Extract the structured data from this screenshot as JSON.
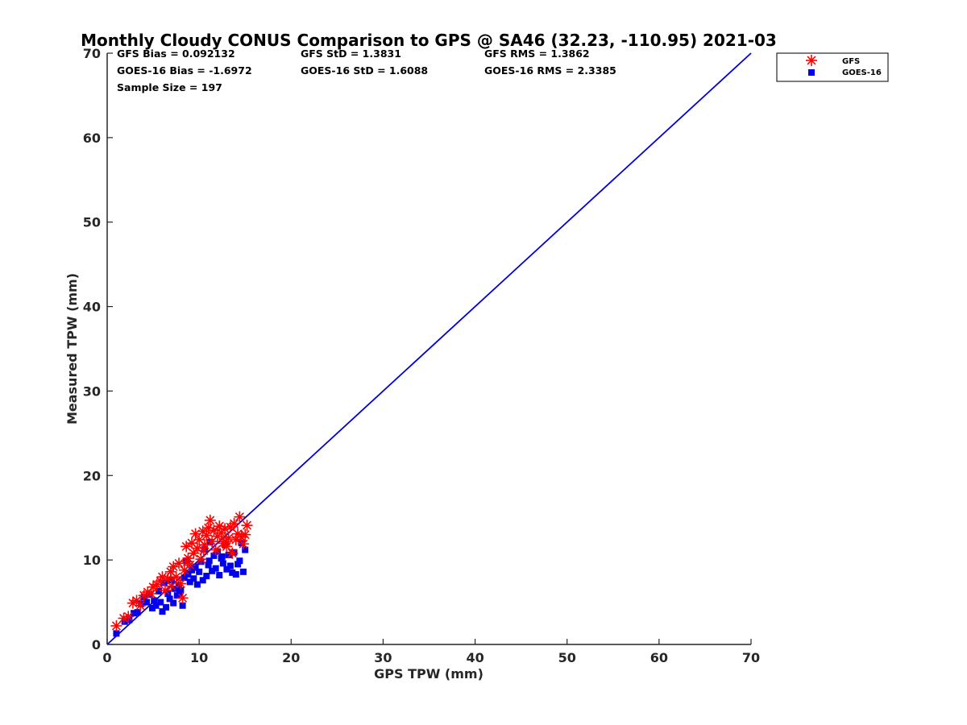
{
  "chart_data": {
    "type": "scatter",
    "title": "Monthly Cloudy CONUS Comparison to GPS @ SA46 (32.23, -110.95) 2021-03",
    "xlabel": "GPS TPW (mm)",
    "ylabel": "Measured TPW (mm)",
    "xlim": [
      0,
      70
    ],
    "ylim": [
      0,
      70
    ],
    "xticks": [
      "0",
      "10",
      "20",
      "30",
      "40",
      "50",
      "60",
      "70"
    ],
    "yticks": [
      "0",
      "10",
      "20",
      "30",
      "40",
      "50",
      "60",
      "70"
    ],
    "grid": false,
    "legend_position": "top-right (outside axes)",
    "stats": [
      [
        "GFS Bias = 0.092132",
        "GFS StD = 1.3831",
        "GFS RMS = 1.3862"
      ],
      [
        "GOES-16 Bias = -1.6972",
        "GOES-16 StD = 1.6088",
        "GOES-16 RMS = 2.3385"
      ],
      [
        "Sample Size = 197"
      ]
    ],
    "reference_line": {
      "x": [
        0,
        70
      ],
      "y": [
        0,
        70
      ],
      "color": "#0000dd"
    },
    "series": [
      {
        "name": "GFS",
        "marker": "asterisk",
        "color": "#ff0000",
        "points": [
          [
            1.0,
            2.2
          ],
          [
            1.8,
            3.1
          ],
          [
            2.3,
            3.3
          ],
          [
            2.8,
            4.9
          ],
          [
            3.2,
            5.2
          ],
          [
            3.6,
            4.6
          ],
          [
            4.0,
            5.8
          ],
          [
            4.4,
            6.2
          ],
          [
            4.8,
            6.0
          ],
          [
            5.0,
            6.8
          ],
          [
            5.4,
            7.1
          ],
          [
            5.8,
            7.5
          ],
          [
            6.0,
            8.0
          ],
          [
            6.3,
            6.4
          ],
          [
            6.6,
            7.8
          ],
          [
            6.9,
            8.6
          ],
          [
            7.2,
            9.2
          ],
          [
            7.5,
            8.0
          ],
          [
            7.8,
            9.6
          ],
          [
            8.0,
            7.2
          ],
          [
            8.2,
            5.5
          ],
          [
            8.4,
            8.8
          ],
          [
            8.6,
            11.6
          ],
          [
            8.8,
            10.2
          ],
          [
            9.0,
            9.4
          ],
          [
            9.2,
            12.0
          ],
          [
            9.4,
            10.8
          ],
          [
            9.6,
            13.1
          ],
          [
            9.8,
            11.4
          ],
          [
            10.0,
            12.4
          ],
          [
            10.2,
            10.1
          ],
          [
            10.4,
            13.4
          ],
          [
            10.6,
            11.8
          ],
          [
            10.8,
            12.9
          ],
          [
            11.0,
            13.8
          ],
          [
            11.2,
            14.7
          ],
          [
            11.4,
            12.2
          ],
          [
            11.6,
            13.5
          ],
          [
            11.8,
            11.2
          ],
          [
            12.0,
            12.8
          ],
          [
            12.2,
            14.0
          ],
          [
            12.4,
            13.2
          ],
          [
            12.6,
            12.0
          ],
          [
            12.8,
            13.7
          ],
          [
            13.0,
            11.6
          ],
          [
            13.2,
            12.6
          ],
          [
            13.4,
            13.9
          ],
          [
            13.6,
            10.8
          ],
          [
            13.8,
            14.3
          ],
          [
            14.0,
            12.4
          ],
          [
            14.2,
            13.1
          ],
          [
            14.4,
            15.1
          ],
          [
            14.6,
            12.7
          ],
          [
            14.8,
            11.9
          ],
          [
            15.0,
            13.0
          ],
          [
            15.2,
            14.1
          ],
          [
            7.0,
            6.9
          ],
          [
            8.7,
            9.8
          ],
          [
            10.5,
            11.1
          ],
          [
            12.9,
            12.2
          ]
        ]
      },
      {
        "name": "GOES-16",
        "marker": "square",
        "color": "#0000ee",
        "points": [
          [
            1.0,
            1.3
          ],
          [
            1.9,
            2.7
          ],
          [
            2.4,
            2.9
          ],
          [
            2.9,
            3.7
          ],
          [
            3.3,
            3.8
          ],
          [
            3.7,
            4.8
          ],
          [
            4.0,
            5.6
          ],
          [
            4.3,
            5.0
          ],
          [
            4.6,
            5.9
          ],
          [
            4.9,
            4.3
          ],
          [
            5.1,
            5.2
          ],
          [
            5.3,
            4.6
          ],
          [
            5.6,
            6.3
          ],
          [
            5.8,
            5.0
          ],
          [
            6.0,
            3.9
          ],
          [
            6.2,
            7.3
          ],
          [
            6.4,
            4.4
          ],
          [
            6.6,
            6.0
          ],
          [
            6.8,
            5.4
          ],
          [
            7.0,
            7.6
          ],
          [
            7.2,
            4.9
          ],
          [
            7.4,
            6.6
          ],
          [
            7.6,
            5.8
          ],
          [
            7.8,
            7.0
          ],
          [
            8.0,
            6.4
          ],
          [
            8.2,
            4.6
          ],
          [
            8.4,
            7.9
          ],
          [
            8.6,
            9.9
          ],
          [
            8.8,
            8.3
          ],
          [
            9.0,
            7.4
          ],
          [
            9.2,
            8.8
          ],
          [
            9.4,
            7.8
          ],
          [
            9.6,
            9.2
          ],
          [
            9.8,
            7.1
          ],
          [
            10.0,
            8.6
          ],
          [
            10.2,
            9.8
          ],
          [
            10.4,
            7.6
          ],
          [
            10.6,
            11.3
          ],
          [
            10.8,
            8.1
          ],
          [
            11.0,
            9.4
          ],
          [
            11.2,
            12.1
          ],
          [
            11.4,
            8.7
          ],
          [
            11.6,
            10.5
          ],
          [
            11.8,
            9.0
          ],
          [
            12.0,
            11.0
          ],
          [
            12.2,
            8.2
          ],
          [
            12.4,
            10.2
          ],
          [
            12.6,
            9.6
          ],
          [
            12.8,
            11.8
          ],
          [
            13.0,
            8.9
          ],
          [
            13.2,
            10.6
          ],
          [
            13.4,
            9.3
          ],
          [
            13.6,
            8.5
          ],
          [
            13.8,
            10.9
          ],
          [
            14.0,
            8.3
          ],
          [
            14.2,
            9.5
          ],
          [
            14.4,
            9.9
          ],
          [
            14.6,
            12.0
          ],
          [
            14.8,
            8.6
          ],
          [
            15.0,
            11.2
          ],
          [
            9.5,
            9.1
          ],
          [
            11.1,
            9.9
          ],
          [
            12.5,
            10.4
          ],
          [
            7.9,
            6.1
          ]
        ]
      }
    ]
  }
}
